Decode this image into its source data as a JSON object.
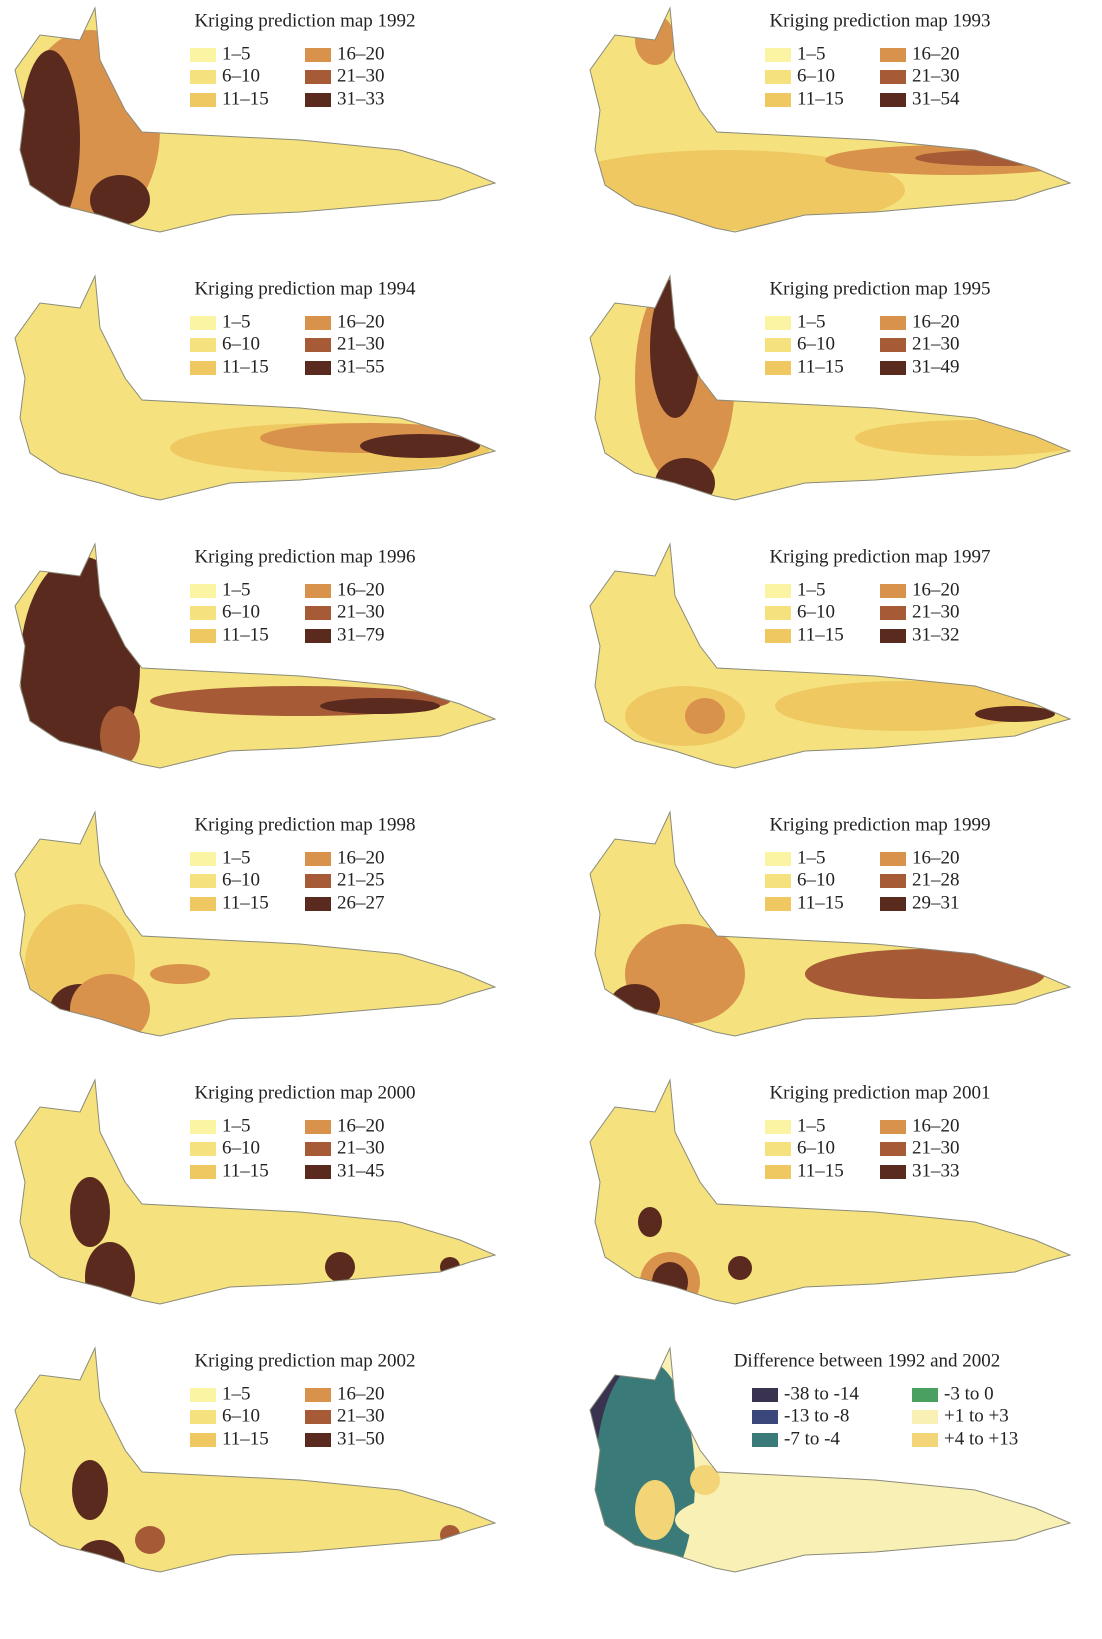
{
  "panels": [
    {
      "title": "Kriging prediction map 1992",
      "legend": [
        "1–5",
        "6–10",
        "11–15",
        "16–20",
        "21–30",
        "31–33"
      ]
    },
    {
      "title": "Kriging prediction map 1993",
      "legend": [
        "1–5",
        "6–10",
        "11–15",
        "16–20",
        "21–30",
        "31–54"
      ]
    },
    {
      "title": "Kriging prediction map 1994",
      "legend": [
        "1–5",
        "6–10",
        "11–15",
        "16–20",
        "21–30",
        "31–55"
      ]
    },
    {
      "title": "Kriging prediction map 1995",
      "legend": [
        "1–5",
        "6–10",
        "11–15",
        "16–20",
        "21–30",
        "31–49"
      ]
    },
    {
      "title": "Kriging prediction map 1996",
      "legend": [
        "1–5",
        "6–10",
        "11–15",
        "16–20",
        "21–30",
        "31–79"
      ]
    },
    {
      "title": "Kriging prediction map 1997",
      "legend": [
        "1–5",
        "6–10",
        "11–15",
        "16–20",
        "21–30",
        "31–32"
      ]
    },
    {
      "title": "Kriging prediction map 1998",
      "legend": [
        "1–5",
        "6–10",
        "11–15",
        "16–20",
        "21–25",
        "26–27"
      ]
    },
    {
      "title": "Kriging prediction map 1999",
      "legend": [
        "1–5",
        "6–10",
        "11–15",
        "16–20",
        "21–28",
        "29–31"
      ]
    },
    {
      "title": "Kriging prediction map 2000",
      "legend": [
        "1–5",
        "6–10",
        "11–15",
        "16–20",
        "21–30",
        "31–45"
      ]
    },
    {
      "title": "Kriging prediction map 2001",
      "legend": [
        "1–5",
        "6–10",
        "11–15",
        "16–20",
        "21–30",
        "31–33"
      ]
    },
    {
      "title": "Kriging prediction map 2002",
      "legend": [
        "1–5",
        "6–10",
        "11–15",
        "16–20",
        "21–30",
        "31–50"
      ]
    },
    {
      "title": "Difference between 1992 and 2002",
      "legend": [
        "-38 to -14",
        "-13 to -8",
        "-7 to -4",
        "-3 to 0",
        "+1 to +3",
        "+4 to +13"
      ]
    }
  ]
}
